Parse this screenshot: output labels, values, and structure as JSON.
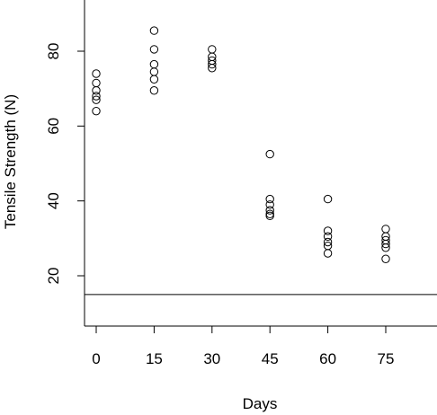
{
  "chart_data": {
    "type": "scatter",
    "title": "",
    "xlabel": "Days",
    "ylabel": "Tensile Strength (N)",
    "xlim": [
      -5,
      87
    ],
    "ylim": [
      6,
      90
    ],
    "x_ticks": [
      0,
      15,
      30,
      45,
      60,
      75
    ],
    "x_tick_labels": [
      "0",
      "15",
      "30",
      "45",
      "60",
      "75"
    ],
    "y_ticks": [
      20,
      40,
      60,
      80
    ],
    "y_tick_labels": [
      "20",
      "40",
      "60",
      "80"
    ],
    "reference_line_y": 15,
    "grid": false,
    "series": [
      {
        "points": [
          {
            "x": 0,
            "y": 74
          },
          {
            "x": 0,
            "y": 71.5
          },
          {
            "x": 0,
            "y": 69.5
          },
          {
            "x": 0,
            "y": 68
          },
          {
            "x": 0,
            "y": 67
          },
          {
            "x": 0,
            "y": 64
          },
          {
            "x": 15,
            "y": 85.5
          },
          {
            "x": 15,
            "y": 80.5
          },
          {
            "x": 15,
            "y": 76.5
          },
          {
            "x": 15,
            "y": 74.5
          },
          {
            "x": 15,
            "y": 72.5
          },
          {
            "x": 15,
            "y": 69.5
          },
          {
            "x": 30,
            "y": 80.5
          },
          {
            "x": 30,
            "y": 78.5
          },
          {
            "x": 30,
            "y": 77.5
          },
          {
            "x": 30,
            "y": 76.5
          },
          {
            "x": 30,
            "y": 75.5
          },
          {
            "x": 45,
            "y": 52.5
          },
          {
            "x": 45,
            "y": 40.5
          },
          {
            "x": 45,
            "y": 39
          },
          {
            "x": 45,
            "y": 37.5
          },
          {
            "x": 45,
            "y": 36.5
          },
          {
            "x": 45,
            "y": 36
          },
          {
            "x": 60,
            "y": 40.5
          },
          {
            "x": 60,
            "y": 32
          },
          {
            "x": 60,
            "y": 30.5
          },
          {
            "x": 60,
            "y": 29
          },
          {
            "x": 60,
            "y": 28
          },
          {
            "x": 60,
            "y": 26
          },
          {
            "x": 75,
            "y": 32.5
          },
          {
            "x": 75,
            "y": 30.5
          },
          {
            "x": 75,
            "y": 29.5
          },
          {
            "x": 75,
            "y": 28.5
          },
          {
            "x": 75,
            "y": 27.5
          },
          {
            "x": 75,
            "y": 24.5
          }
        ]
      }
    ]
  }
}
